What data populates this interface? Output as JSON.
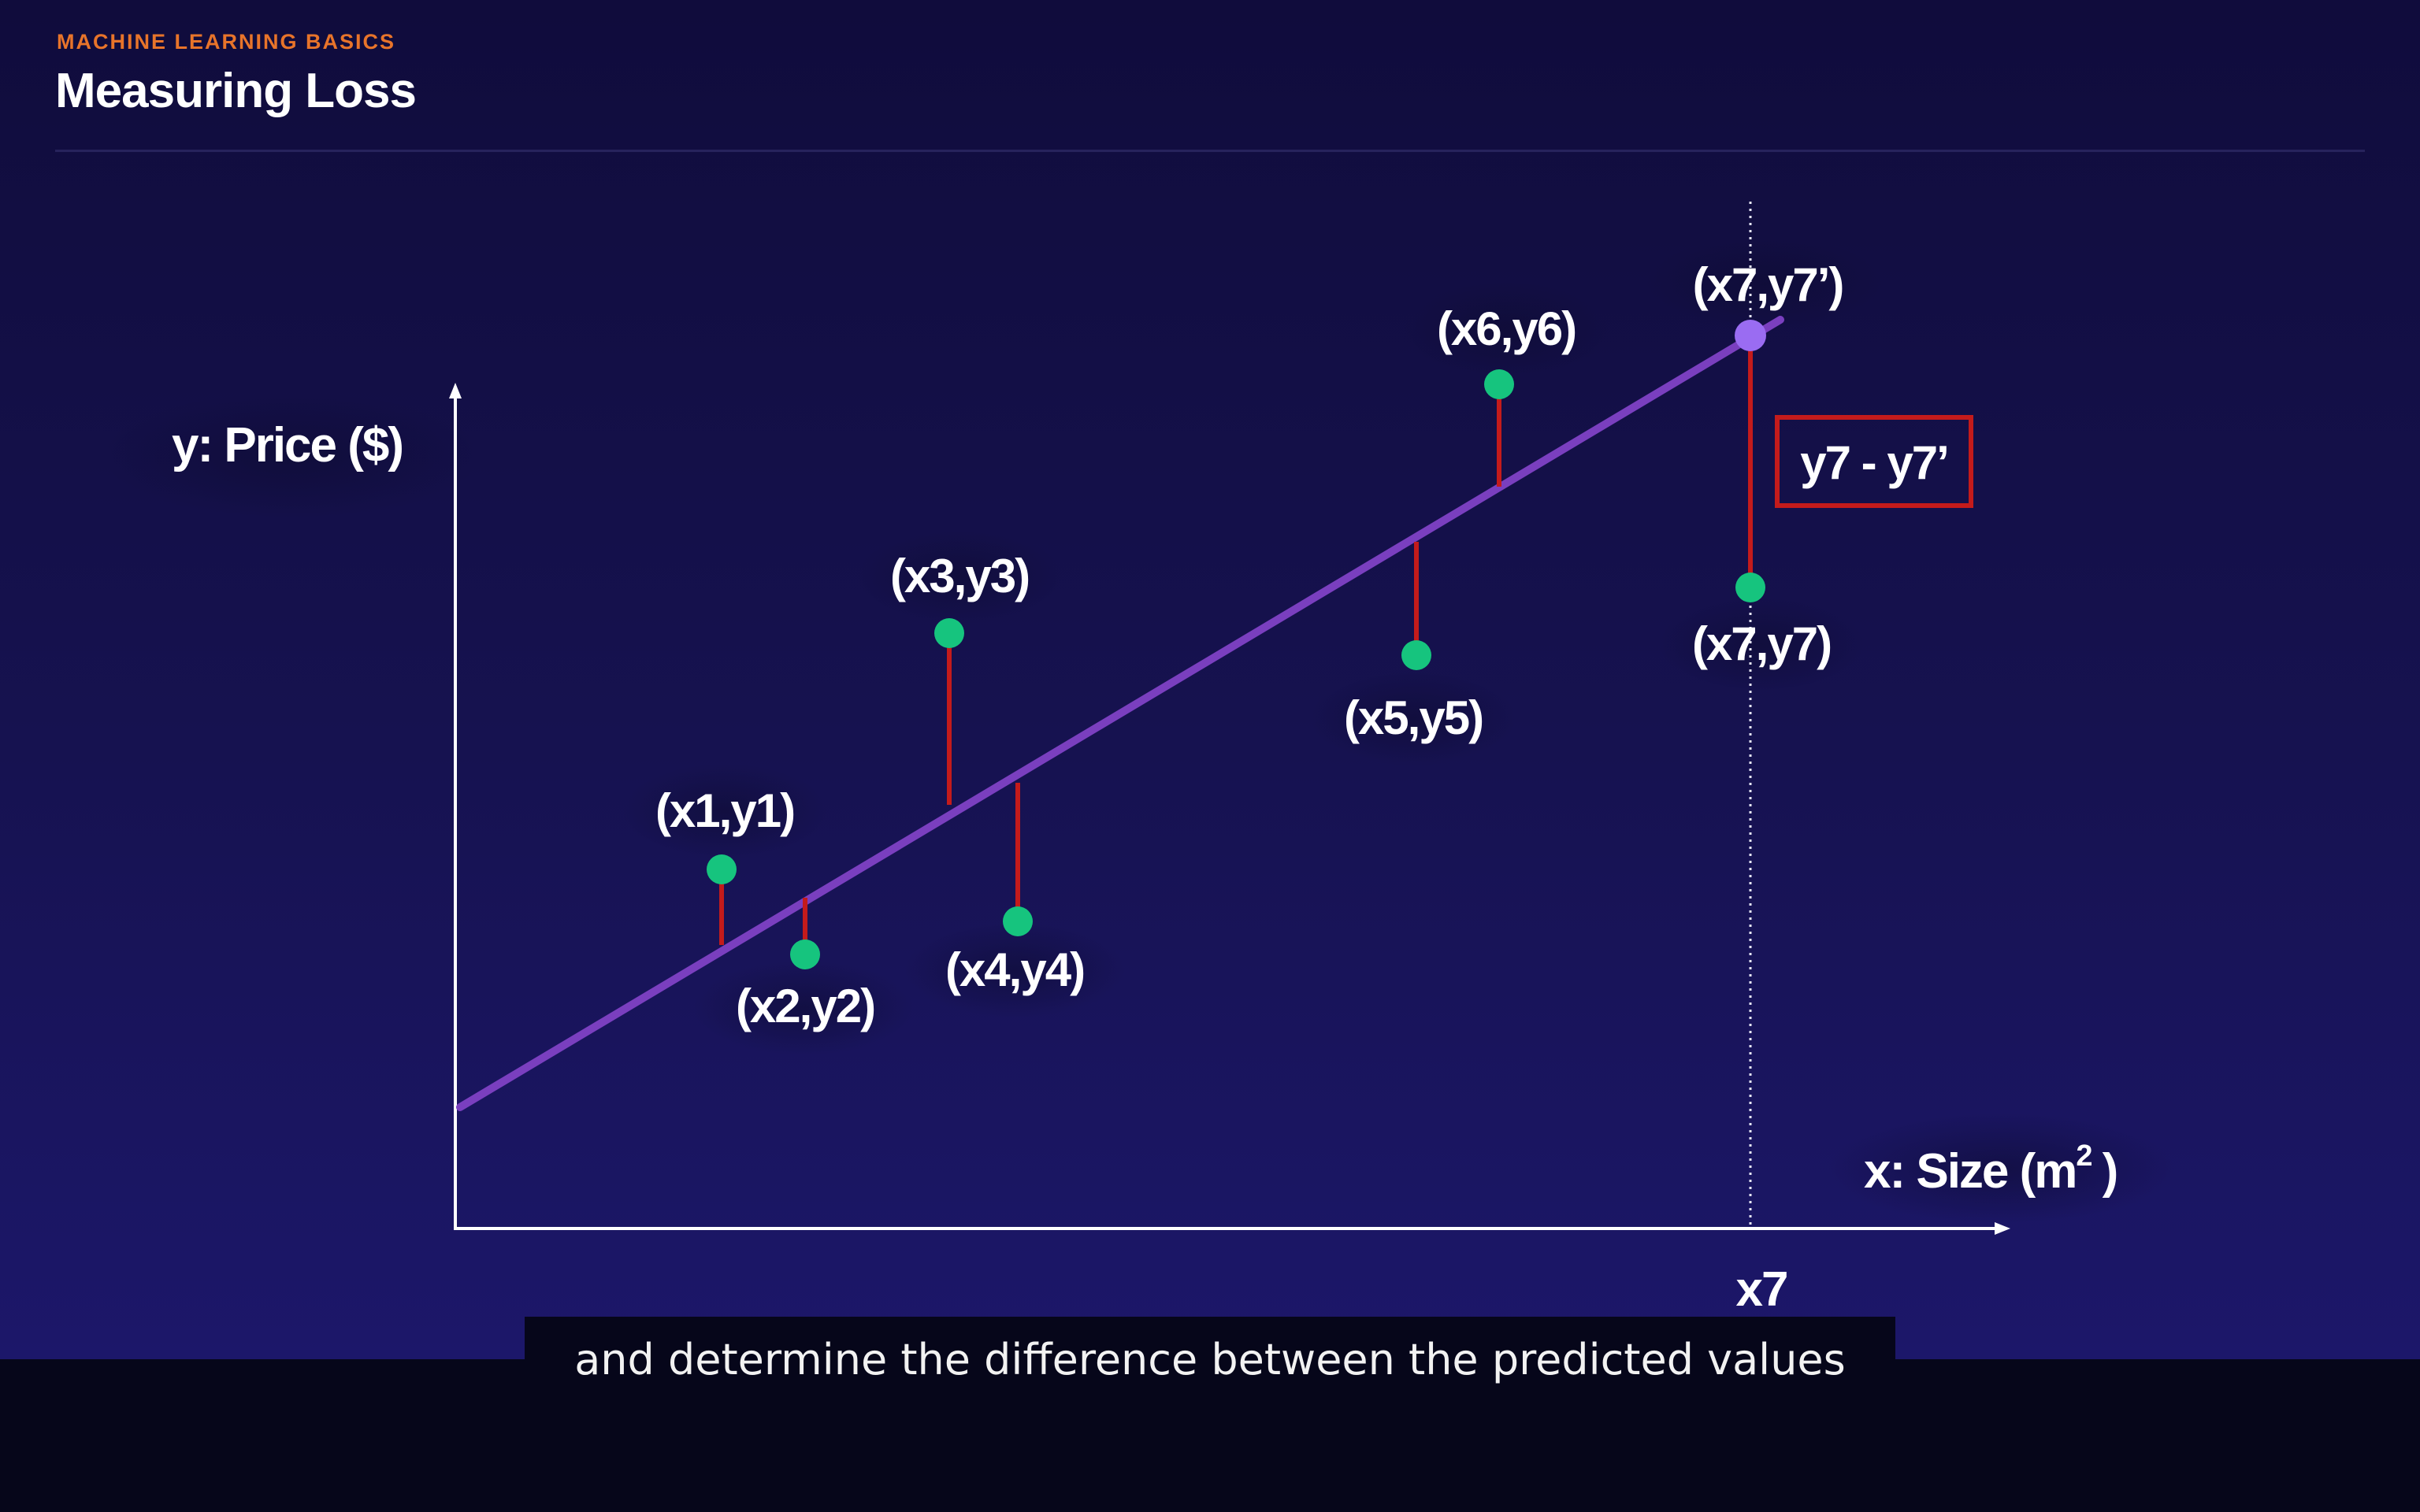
{
  "slide": {
    "eyebrow": "MACHINE LEARNING BASICS",
    "title": "Measuring Loss"
  },
  "diagram": {
    "y_axis_label": "y: Price ($)",
    "x_axis_label_main": "x: Size (m",
    "x_axis_label_sup": "2",
    "x_axis_label_end": ")",
    "x7_tick_label": "x7",
    "residual_box_label": "y7 - y7’",
    "point_labels": {
      "p1": "(x1,y1)",
      "p2": "(x2,y2)",
      "p3": "(x3,y3)",
      "p4": "(x4,y4)",
      "p5": "(x5,y5)",
      "p6": "(x6,y6)",
      "p7": "(x7,y7)",
      "p7_pred": "(x7,y7’)"
    },
    "colors": {
      "data_point": "#16c47e",
      "predicted_point": "#9a6cf2",
      "regression_line": "#7a3fbf",
      "residual": "#c41b1b",
      "axis": "#ffffff"
    }
  },
  "caption": "and determine the difference between the predicted values"
}
